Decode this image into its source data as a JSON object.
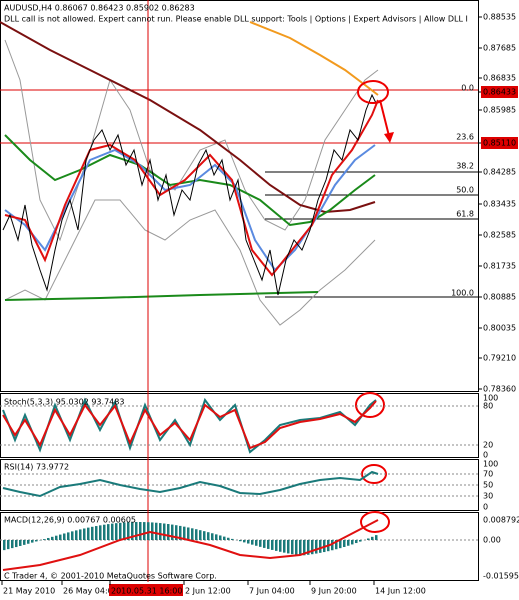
{
  "header": {
    "symbol_line": "AUDUSD,H4  0.86067 0.86423 0.85902 0.86283",
    "warning": "DLL call is not allowed. Expert cannot run. Please enable DLL support: Tools | Options | Expert Advisors | Allow DLL I"
  },
  "price_axis": {
    "labels": [
      "0.88535",
      "0.87685",
      "0.86835",
      "0.86433",
      "0.85985",
      "0.85110",
      "0.84285",
      "0.83435",
      "0.82585",
      "0.81735",
      "0.80885",
      "0.80035",
      "0.79210",
      "0.78360"
    ]
  },
  "fibonacci": {
    "levels": [
      "0.0",
      "23.6",
      "38.2",
      "50.0",
      "61.8",
      "100.0"
    ]
  },
  "stochastic": {
    "title": "Stoch(5,3,3) 95.0302 93.7483",
    "axis": [
      "100",
      "80",
      "20",
      "0"
    ]
  },
  "rsi": {
    "title": "RSI(14) 73.9772",
    "axis": [
      "100",
      "70",
      "50",
      "30",
      "0"
    ]
  },
  "macd": {
    "title": "MACD(12,26,9) 0.00767 0.00605",
    "axis": [
      "0.008792",
      "0.00",
      "-0.01595"
    ]
  },
  "copyright": "C Trader 4, © 2001-2010 MetaQuotes Software Corp.",
  "time_axis": [
    "21 May 2010",
    "26 May 04:00",
    "2010.05.31 16:00",
    "2 Jun 12:00",
    "7 Jun 04:00",
    "9 Jun 20:00",
    "14 Jun 12:00"
  ]
}
